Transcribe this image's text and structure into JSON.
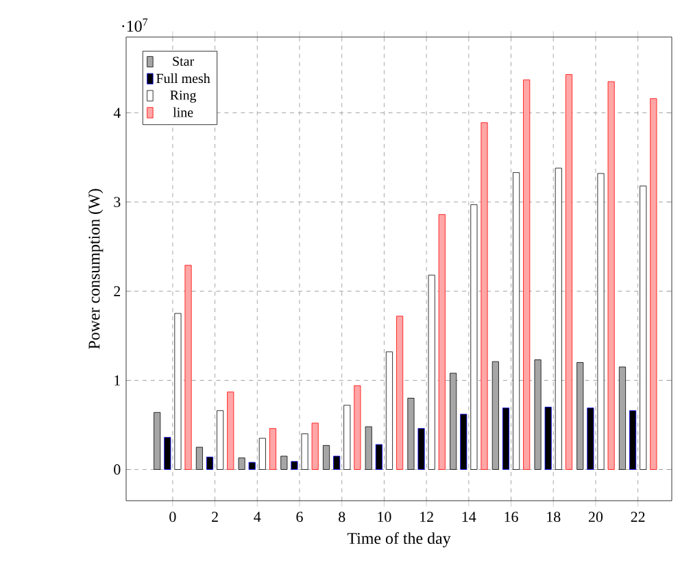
{
  "chart_data": {
    "type": "bar",
    "xlabel": "Time of the day",
    "ylabel": "Power consumption (W)",
    "x": [
      0,
      2,
      4,
      6,
      8,
      10,
      12,
      14,
      16,
      18,
      20,
      22
    ],
    "series": [
      {
        "name": "Star",
        "color": "#000000",
        "values": [
          0.64,
          0.25,
          0.13,
          0.15,
          0.27,
          0.48,
          0.8,
          1.08,
          1.21,
          1.23,
          1.2,
          1.15
        ]
      },
      {
        "name": "Full mesh",
        "color": "#0000ff",
        "values": [
          0.36,
          0.14,
          0.08,
          0.09,
          0.15,
          0.28,
          0.46,
          0.62,
          0.69,
          0.7,
          0.69,
          0.66
        ]
      },
      {
        "name": "Ring",
        "color": "#000000",
        "values": [
          1.75,
          0.66,
          0.35,
          0.4,
          0.72,
          1.32,
          2.18,
          2.97,
          3.33,
          3.38,
          3.32,
          3.18
        ]
      },
      {
        "name": "line",
        "color": "#ff0000",
        "values": [
          2.29,
          0.87,
          0.46,
          0.52,
          0.94,
          1.72,
          2.86,
          3.89,
          4.37,
          4.43,
          4.35,
          4.16
        ]
      }
    ],
    "xlim": [
      -2.2,
      23.6
    ],
    "xticks": [
      0,
      2,
      4,
      6,
      8,
      10,
      12,
      14,
      16,
      18,
      20,
      22
    ],
    "ylim": [
      -0.35,
      4.85
    ],
    "yticks": [
      0,
      1,
      2,
      3,
      4
    ],
    "annotations": [
      "·10$^{7}$"
    ],
    "grid": true,
    "legend": "top left"
  }
}
